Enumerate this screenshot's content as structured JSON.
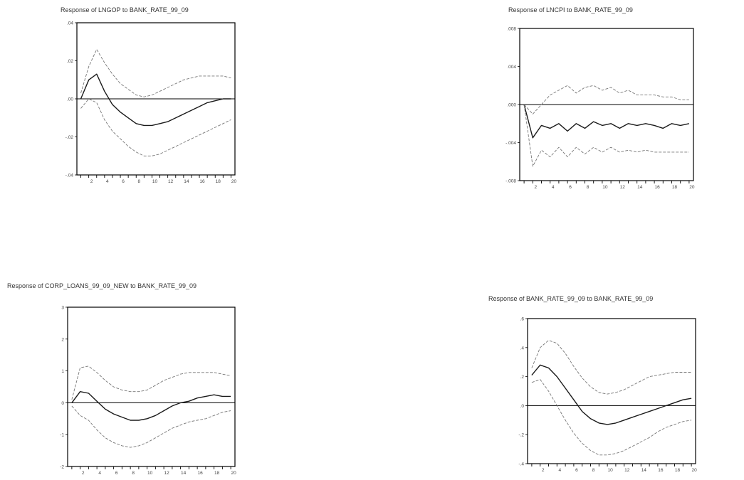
{
  "colors": {
    "response": "#1a1a1a",
    "band": "#777777",
    "zero_line": "#000000",
    "frame": "#000000"
  },
  "chart_data": [
    {
      "type": "line",
      "title": "Response of LNGOP to BANK_RATE_99_09",
      "ylim": [
        -0.04,
        0.04
      ],
      "y_ticks": [
        ".04",
        ".02",
        ".00",
        "-.02",
        "-.04"
      ],
      "x_ticks": [
        "2",
        "4",
        "6",
        "8",
        "10",
        "12",
        "14",
        "16",
        "18",
        "20"
      ],
      "x": [
        1,
        2,
        3,
        4,
        5,
        6,
        7,
        8,
        9,
        10,
        11,
        12,
        13,
        14,
        15,
        16,
        17,
        18,
        19,
        20
      ],
      "series": [
        {
          "values": [
            0.003,
            0.017,
            0.026,
            0.019,
            0.013,
            0.008,
            0.005,
            0.002,
            0.001,
            0.002,
            0.004,
            0.006,
            0.008,
            0.01,
            0.011,
            0.012,
            0.012,
            0.012,
            0.012,
            0.011
          ]
        },
        {
          "values": [
            0.0,
            0.01,
            0.013,
            0.004,
            -0.003,
            -0.007,
            -0.01,
            -0.013,
            -0.014,
            -0.014,
            -0.013,
            -0.012,
            -0.01,
            -0.008,
            -0.006,
            -0.004,
            -0.002,
            -0.001,
            0.0,
            0.0
          ]
        },
        {
          "values": [
            -0.005,
            0.0,
            -0.002,
            -0.011,
            -0.017,
            -0.021,
            -0.025,
            -0.028,
            -0.03,
            -0.03,
            -0.029,
            -0.027,
            -0.025,
            -0.023,
            -0.021,
            -0.019,
            -0.017,
            -0.015,
            -0.013,
            -0.011
          ]
        }
      ]
    },
    {
      "type": "line",
      "title": "Response of LNCPI to BANK_RATE_99_09",
      "ylim": [
        -0.008,
        0.008
      ],
      "y_ticks": [
        ".008",
        ".004",
        ".000",
        "-.004",
        "-.008"
      ],
      "x_ticks": [
        "2",
        "4",
        "6",
        "8",
        "10",
        "12",
        "14",
        "16",
        "18",
        "20"
      ],
      "x": [
        1,
        2,
        3,
        4,
        5,
        6,
        7,
        8,
        9,
        10,
        11,
        12,
        13,
        14,
        15,
        16,
        17,
        18,
        19,
        20
      ],
      "series": [
        {
          "values": [
            0.0,
            -0.001,
            0.0,
            0.001,
            0.0015,
            0.002,
            0.0012,
            0.0018,
            0.002,
            0.0015,
            0.0018,
            0.0012,
            0.0015,
            0.001,
            0.001,
            0.001,
            0.0008,
            0.0008,
            0.0005,
            0.0005
          ]
        },
        {
          "values": [
            0.0,
            -0.0035,
            -0.0022,
            -0.0025,
            -0.002,
            -0.0028,
            -0.002,
            -0.0025,
            -0.0018,
            -0.0022,
            -0.002,
            -0.0025,
            -0.002,
            -0.0022,
            -0.002,
            -0.0022,
            -0.0025,
            -0.002,
            -0.0022,
            -0.002
          ]
        },
        {
          "values": [
            0.0,
            -0.0065,
            -0.0048,
            -0.0055,
            -0.0045,
            -0.0055,
            -0.0045,
            -0.0052,
            -0.0045,
            -0.005,
            -0.0045,
            -0.005,
            -0.0048,
            -0.005,
            -0.0048,
            -0.005,
            -0.005,
            -0.005,
            -0.005,
            -0.005
          ]
        }
      ]
    },
    {
      "type": "line",
      "title": "Response of CORP_LOANS_99_09_NEW to BANK_RATE_99_09",
      "ylim": [
        -2,
        3
      ],
      "y_ticks": [
        "3",
        "2",
        "1",
        "0",
        "-1",
        "-2"
      ],
      "x_ticks": [
        "2",
        "4",
        "6",
        "8",
        "10",
        "12",
        "14",
        "16",
        "18",
        "20"
      ],
      "x": [
        1,
        2,
        3,
        4,
        5,
        6,
        7,
        8,
        9,
        10,
        11,
        12,
        13,
        14,
        15,
        16,
        17,
        18,
        19,
        20
      ],
      "series": [
        {
          "values": [
            0.1,
            1.1,
            1.15,
            0.95,
            0.7,
            0.5,
            0.4,
            0.35,
            0.35,
            0.4,
            0.55,
            0.7,
            0.8,
            0.9,
            0.95,
            0.95,
            0.95,
            0.95,
            0.9,
            0.85
          ]
        },
        {
          "values": [
            0.0,
            0.35,
            0.3,
            0.05,
            -0.2,
            -0.35,
            -0.45,
            -0.55,
            -0.55,
            -0.5,
            -0.4,
            -0.25,
            -0.1,
            0.0,
            0.05,
            0.15,
            0.2,
            0.25,
            0.2,
            0.2
          ]
        },
        {
          "values": [
            -0.1,
            -0.4,
            -0.55,
            -0.85,
            -1.1,
            -1.25,
            -1.35,
            -1.4,
            -1.35,
            -1.25,
            -1.1,
            -0.95,
            -0.8,
            -0.7,
            -0.6,
            -0.55,
            -0.5,
            -0.4,
            -0.3,
            -0.25
          ]
        }
      ]
    },
    {
      "type": "line",
      "title": "Response of BANK_RATE_99_09 to BANK_RATE_99_09",
      "ylim": [
        -0.4,
        0.6
      ],
      "y_ticks": [
        ".6",
        ".4",
        ".2",
        ".0",
        "-.2",
        "-.4"
      ],
      "x_ticks": [
        "2",
        "4",
        "6",
        "8",
        "10",
        "12",
        "14",
        "16",
        "18",
        "20"
      ],
      "x": [
        1,
        2,
        3,
        4,
        5,
        6,
        7,
        8,
        9,
        10,
        11,
        12,
        13,
        14,
        15,
        16,
        17,
        18,
        19,
        20
      ],
      "series": [
        {
          "values": [
            0.26,
            0.4,
            0.45,
            0.43,
            0.36,
            0.27,
            0.19,
            0.13,
            0.09,
            0.08,
            0.09,
            0.11,
            0.14,
            0.17,
            0.2,
            0.21,
            0.22,
            0.23,
            0.23,
            0.23
          ]
        },
        {
          "values": [
            0.21,
            0.28,
            0.26,
            0.2,
            0.12,
            0.04,
            -0.04,
            -0.09,
            -0.12,
            -0.13,
            -0.12,
            -0.1,
            -0.08,
            -0.06,
            -0.04,
            -0.02,
            0.0,
            0.02,
            0.04,
            0.05
          ]
        },
        {
          "values": [
            0.16,
            0.18,
            0.1,
            0.0,
            -0.1,
            -0.19,
            -0.26,
            -0.31,
            -0.34,
            -0.34,
            -0.33,
            -0.31,
            -0.28,
            -0.25,
            -0.22,
            -0.18,
            -0.15,
            -0.13,
            -0.11,
            -0.1
          ]
        }
      ]
    }
  ]
}
